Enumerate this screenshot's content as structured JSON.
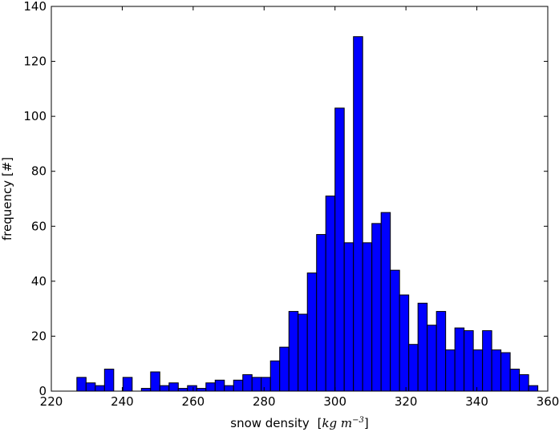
{
  "chart_data": {
    "type": "bar",
    "title": "",
    "xlabel": "snow density",
    "xlabel_unit_open": "[",
    "xlabel_unit_math": "kg m",
    "xlabel_unit_exp": "−3",
    "xlabel_unit_close": "]",
    "ylabel": "frequency [#]",
    "xlim": [
      220,
      360
    ],
    "ylim": [
      0,
      140
    ],
    "x_ticks": [
      220,
      240,
      260,
      280,
      300,
      320,
      340,
      360
    ],
    "y_ticks": [
      0,
      20,
      40,
      60,
      80,
      100,
      120,
      140
    ],
    "bin_start": 227.2,
    "bin_width": 2.6,
    "values": [
      5,
      3,
      2,
      8,
      0,
      5,
      0,
      1,
      7,
      2,
      3,
      1,
      2,
      1,
      3,
      4,
      2,
      4,
      6,
      5,
      5,
      11,
      16,
      29,
      28,
      43,
      57,
      71,
      103,
      54,
      129,
      54,
      61,
      65,
      44,
      35,
      17,
      32,
      24,
      29,
      15,
      23,
      22,
      15,
      22,
      15,
      14,
      8,
      6,
      2
    ],
    "bar_color": "#0000ff",
    "edge_color": "#000000",
    "grid": false,
    "legend": "none"
  }
}
